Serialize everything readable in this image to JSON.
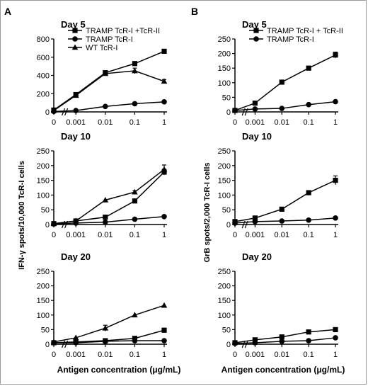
{
  "figure": {
    "panel_labels": [
      "A",
      "B"
    ],
    "ylabels": [
      "IFN-γ spots/10,000 TcR-I cells",
      "GrB spots/2,000 TcR-I cells"
    ],
    "xlabel": "Antigen concentration (μg/mL)",
    "xticks": [
      "0",
      "0.001",
      "0.01",
      "0.1",
      "1"
    ],
    "marker_color": "#000000"
  },
  "chart_data": [
    {
      "type": "line",
      "panel": "A",
      "title": "Day 5",
      "categories": [
        "0",
        "0.001",
        "0.01",
        "0.1",
        "1"
      ],
      "ylim": [
        0,
        800
      ],
      "yticks": [
        0,
        200,
        400,
        600,
        800
      ],
      "legend": "top-left",
      "series": [
        {
          "name": "TRAMP TcR-I +TcR-II",
          "marker": "square",
          "values": [
            20,
            190,
            430,
            530,
            665
          ],
          "errors": [
            5,
            10,
            10,
            10,
            10
          ]
        },
        {
          "name": "TRAMP TcR-I",
          "marker": "circle",
          "values": [
            5,
            15,
            60,
            90,
            110
          ],
          "errors": [
            0,
            0,
            0,
            0,
            0
          ]
        },
        {
          "name": "WT TcR-I",
          "marker": "triangle",
          "values": [
            15,
            180,
            420,
            450,
            335
          ],
          "errors": [
            0,
            0,
            0,
            30,
            20
          ]
        }
      ]
    },
    {
      "type": "line",
      "panel": "A",
      "title": "Day 10",
      "categories": [
        "0",
        "0.001",
        "0.01",
        "0.1",
        "1"
      ],
      "ylim": [
        0,
        250
      ],
      "yticks": [
        0,
        50,
        100,
        150,
        200,
        250
      ],
      "series": [
        {
          "name": "",
          "marker": "square",
          "values": [
            3,
            12,
            25,
            80,
            178
          ],
          "errors": [
            0,
            0,
            0,
            0,
            10
          ]
        },
        {
          "name": "",
          "marker": "circle",
          "values": [
            2,
            5,
            8,
            18,
            27
          ],
          "errors": [
            0,
            0,
            0,
            0,
            0
          ]
        },
        {
          "name": "",
          "marker": "triangle",
          "values": [
            3,
            12,
            83,
            110,
            187
          ],
          "errors": [
            0,
            0,
            0,
            5,
            15
          ]
        }
      ]
    },
    {
      "type": "line",
      "panel": "A",
      "title": "Day 20",
      "categories": [
        "0",
        "0.001",
        "0.01",
        "0.1",
        "1"
      ],
      "ylim": [
        0,
        250
      ],
      "yticks": [
        0,
        50,
        100,
        150,
        200,
        250
      ],
      "series": [
        {
          "name": "",
          "marker": "square",
          "values": [
            5,
            8,
            12,
            20,
            48
          ],
          "errors": [
            0,
            0,
            0,
            0,
            0
          ]
        },
        {
          "name": "",
          "marker": "circle",
          "values": [
            5,
            5,
            10,
            12,
            12
          ],
          "errors": [
            0,
            0,
            0,
            0,
            0
          ]
        },
        {
          "name": "",
          "marker": "triangle",
          "values": [
            8,
            22,
            55,
            100,
            133
          ],
          "errors": [
            0,
            0,
            10,
            0,
            0
          ]
        }
      ]
    },
    {
      "type": "line",
      "panel": "B",
      "title": "Day 5",
      "categories": [
        "0",
        "0.001",
        "0.01",
        "0.1",
        "1"
      ],
      "ylim": [
        0,
        250
      ],
      "yticks": [
        0,
        50,
        100,
        150,
        200,
        250
      ],
      "legend": "top-left",
      "series": [
        {
          "name": "TRAMP TcR-I + TcR-II",
          "marker": "square",
          "values": [
            5,
            30,
            102,
            150,
            195
          ],
          "errors": [
            0,
            0,
            0,
            0,
            10
          ]
        },
        {
          "name": "TRAMP TcR-I",
          "marker": "circle",
          "values": [
            5,
            10,
            12,
            25,
            35
          ],
          "errors": [
            0,
            0,
            0,
            0,
            0
          ]
        }
      ]
    },
    {
      "type": "line",
      "panel": "B",
      "title": "Day 10",
      "categories": [
        "0",
        "0.001",
        "0.01",
        "0.1",
        "1"
      ],
      "ylim": [
        0,
        250
      ],
      "yticks": [
        0,
        50,
        100,
        150,
        200,
        250
      ],
      "series": [
        {
          "name": "",
          "marker": "square",
          "values": [
            10,
            22,
            52,
            108,
            150
          ],
          "errors": [
            0,
            0,
            0,
            0,
            15
          ]
        },
        {
          "name": "",
          "marker": "circle",
          "values": [
            5,
            10,
            12,
            15,
            22
          ],
          "errors": [
            0,
            0,
            0,
            0,
            0
          ]
        }
      ]
    },
    {
      "type": "line",
      "panel": "B",
      "title": "Day 20",
      "categories": [
        "0",
        "0.001",
        "0.01",
        "0.1",
        "1"
      ],
      "ylim": [
        0,
        250
      ],
      "yticks": [
        0,
        50,
        100,
        150,
        200,
        250
      ],
      "series": [
        {
          "name": "",
          "marker": "square",
          "values": [
            5,
            15,
            25,
            42,
            50
          ],
          "errors": [
            0,
            0,
            0,
            0,
            0
          ]
        },
        {
          "name": "",
          "marker": "circle",
          "values": [
            3,
            5,
            10,
            12,
            22
          ],
          "errors": [
            0,
            0,
            0,
            0,
            0
          ]
        }
      ]
    }
  ]
}
